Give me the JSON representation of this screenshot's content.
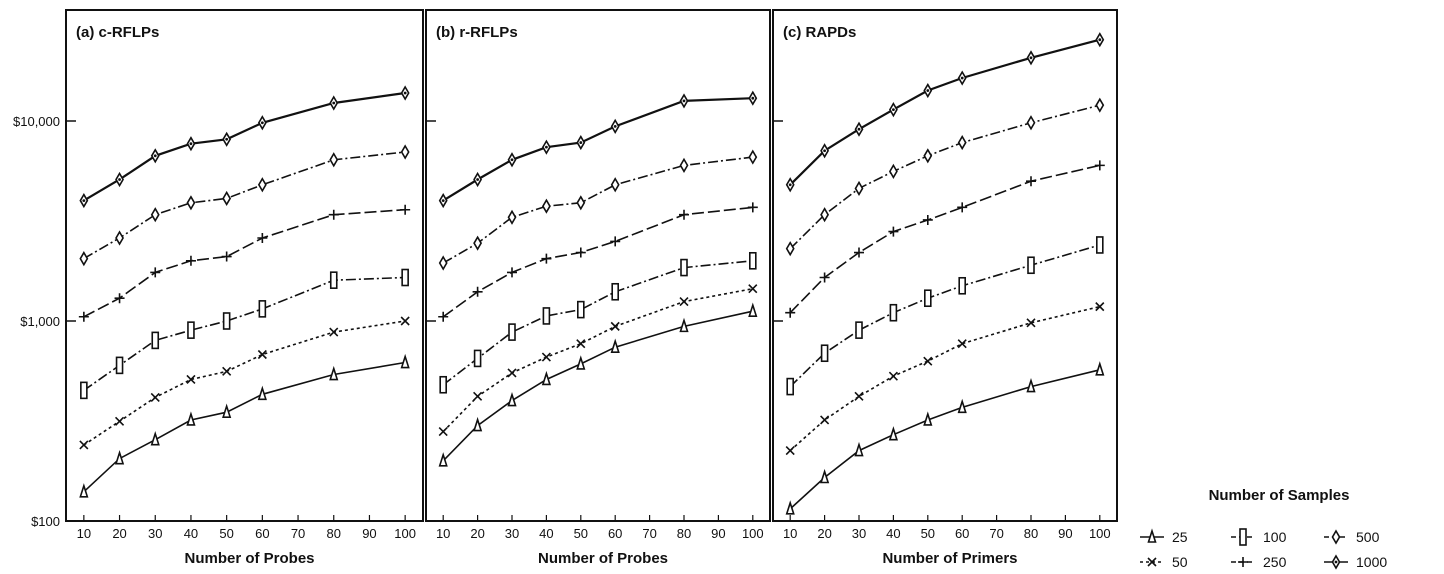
{
  "figure": {
    "y_ticks": [
      "$100",
      "$1,000",
      "$10,000"
    ],
    "legend": {
      "title": "Number of Samples",
      "entries": [
        {
          "label": "25",
          "marker": "triangle",
          "dash": "solid"
        },
        {
          "label": "100",
          "marker": "rect",
          "dash": "dashdot"
        },
        {
          "label": "500",
          "marker": "diamond",
          "dash": "dashdot"
        },
        {
          "label": "50",
          "marker": "x",
          "dash": "dotted"
        },
        {
          "label": "250",
          "marker": "plus",
          "dash": "longdash"
        },
        {
          "label": "1000",
          "marker": "diamond-filled",
          "dash": "solid"
        }
      ]
    }
  },
  "chart_data": [
    {
      "type": "line",
      "title": "(a)  c-RFLPs",
      "xlabel": "Number of Probes",
      "ylabel": "",
      "y_scale": "log",
      "ylim": [
        100,
        28000
      ],
      "xlim": [
        5,
        105
      ],
      "x": [
        10,
        20,
        30,
        40,
        50,
        60,
        80,
        100
      ],
      "x_ticks": [
        "10",
        "20",
        "30",
        "40",
        "50",
        "60",
        "70",
        "80",
        "90",
        "100"
      ],
      "series": [
        {
          "name": "25",
          "values": [
            140,
            205,
            255,
            320,
            350,
            430,
            540,
            620
          ]
        },
        {
          "name": "50",
          "values": [
            240,
            315,
            415,
            510,
            560,
            680,
            880,
            1000
          ]
        },
        {
          "name": "100",
          "values": [
            450,
            600,
            800,
            900,
            1000,
            1150,
            1600,
            1650
          ]
        },
        {
          "name": "250",
          "values": [
            1050,
            1300,
            1750,
            2000,
            2100,
            2600,
            3400,
            3600
          ]
        },
        {
          "name": "500",
          "values": [
            2050,
            2600,
            3400,
            3900,
            4100,
            4800,
            6400,
            7000
          ]
        },
        {
          "name": "1000",
          "values": [
            4000,
            5100,
            6700,
            7700,
            8100,
            9800,
            12300,
            13800
          ]
        }
      ]
    },
    {
      "type": "line",
      "title": "(b)  r-RFLPs",
      "xlabel": "Number of Probes",
      "ylabel": "",
      "y_scale": "log",
      "ylim": [
        100,
        28000
      ],
      "xlim": [
        5,
        105
      ],
      "x": [
        10,
        20,
        30,
        40,
        50,
        60,
        80,
        100
      ],
      "x_ticks": [
        "10",
        "20",
        "30",
        "40",
        "50",
        "60",
        "70",
        "80",
        "90",
        "100"
      ],
      "series": [
        {
          "name": "25",
          "values": [
            200,
            300,
            400,
            510,
            610,
            740,
            940,
            1120
          ]
        },
        {
          "name": "50",
          "values": [
            280,
            420,
            550,
            660,
            770,
            940,
            1250,
            1450
          ]
        },
        {
          "name": "100",
          "values": [
            480,
            650,
            880,
            1060,
            1140,
            1400,
            1850,
            2000
          ]
        },
        {
          "name": "250",
          "values": [
            1050,
            1400,
            1750,
            2050,
            2200,
            2500,
            3400,
            3700
          ]
        },
        {
          "name": "500",
          "values": [
            1950,
            2450,
            3300,
            3750,
            3900,
            4800,
            6000,
            6600
          ]
        },
        {
          "name": "1000",
          "values": [
            4000,
            5100,
            6400,
            7400,
            7800,
            9400,
            12600,
            13000
          ]
        }
      ]
    },
    {
      "type": "line",
      "title": "(c)  RAPDs",
      "xlabel": "Number of Primers",
      "ylabel": "",
      "y_scale": "log",
      "ylim": [
        100,
        28000
      ],
      "xlim": [
        5,
        105
      ],
      "x": [
        10,
        20,
        30,
        40,
        50,
        60,
        80,
        100
      ],
      "x_ticks": [
        "10",
        "20",
        "30",
        "40",
        "50",
        "60",
        "70",
        "80",
        "90",
        "100"
      ],
      "series": [
        {
          "name": "25",
          "values": [
            115,
            165,
            225,
            270,
            320,
            370,
            470,
            570
          ]
        },
        {
          "name": "50",
          "values": [
            225,
            320,
            420,
            530,
            630,
            770,
            980,
            1180
          ]
        },
        {
          "name": "100",
          "values": [
            470,
            690,
            900,
            1100,
            1300,
            1500,
            1900,
            2400
          ]
        },
        {
          "name": "250",
          "values": [
            1100,
            1650,
            2200,
            2800,
            3200,
            3700,
            5000,
            6000
          ]
        },
        {
          "name": "500",
          "values": [
            2300,
            3400,
            4600,
            5600,
            6700,
            7800,
            9800,
            12000
          ]
        },
        {
          "name": "1000",
          "values": [
            4800,
            7100,
            9100,
            11400,
            14200,
            16400,
            20700,
            25500
          ]
        }
      ]
    }
  ]
}
